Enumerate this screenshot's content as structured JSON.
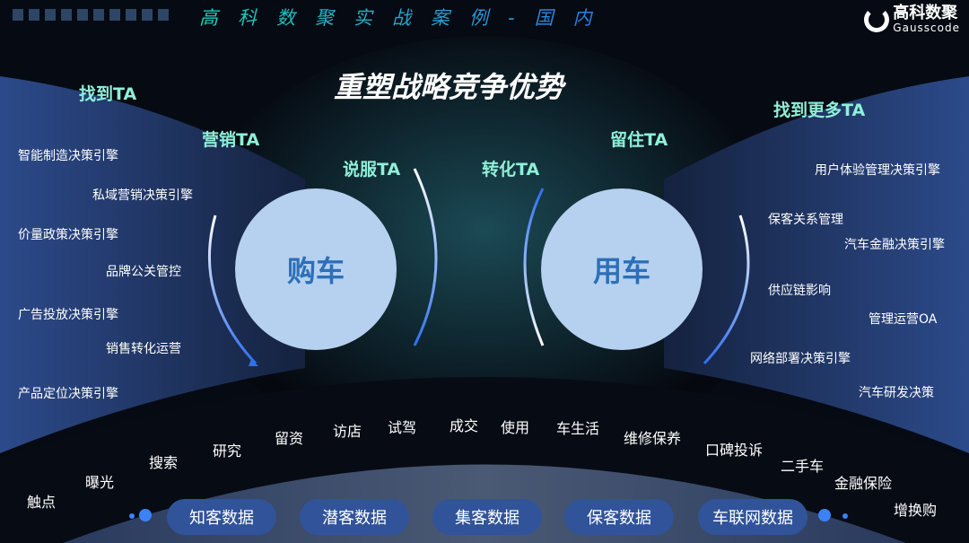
{
  "header": {
    "title": "高科数聚实战案例-国内",
    "logo_cn": "高科数聚",
    "logo_en": "Gausscode"
  },
  "main_title": "重塑战略竞争优势",
  "ta_labels": {
    "find": "找到TA",
    "market": "营销TA",
    "persuade": "说服TA",
    "convert": "转化TA",
    "retain": "留住TA",
    "find_more": "找到更多TA"
  },
  "circles": {
    "buy": "购车",
    "use": "用车"
  },
  "left_items": [
    "智能制造决策引擎",
    "私域营销决策引擎",
    "价量政策决策引擎",
    "品牌公关管控",
    "广告投放决策引擎",
    "销售转化运营",
    "产品定位决策引擎"
  ],
  "right_items": [
    "用户体验管理决策引擎",
    "保客关系管理",
    "汽车金融决策引擎",
    "供应链影响",
    "管理运营OA",
    "网络部署决策引擎",
    "汽车研发决策"
  ],
  "journey": [
    "触点",
    "曝光",
    "搜索",
    "研究",
    "留资",
    "访店",
    "试驾",
    "成交",
    "使用",
    "车生活",
    "维修保养",
    "口碑投诉",
    "二手车",
    "金融保险",
    "增换购"
  ],
  "data_pills": [
    "知客数据",
    "潜客数据",
    "集客数据",
    "保客数据",
    "车联网数据"
  ],
  "colors": {
    "accent_teal": "#8ff0d8",
    "circle_fill": "#b6d1ef",
    "pill": "#30539a",
    "arrow": "#3b82f6"
  }
}
